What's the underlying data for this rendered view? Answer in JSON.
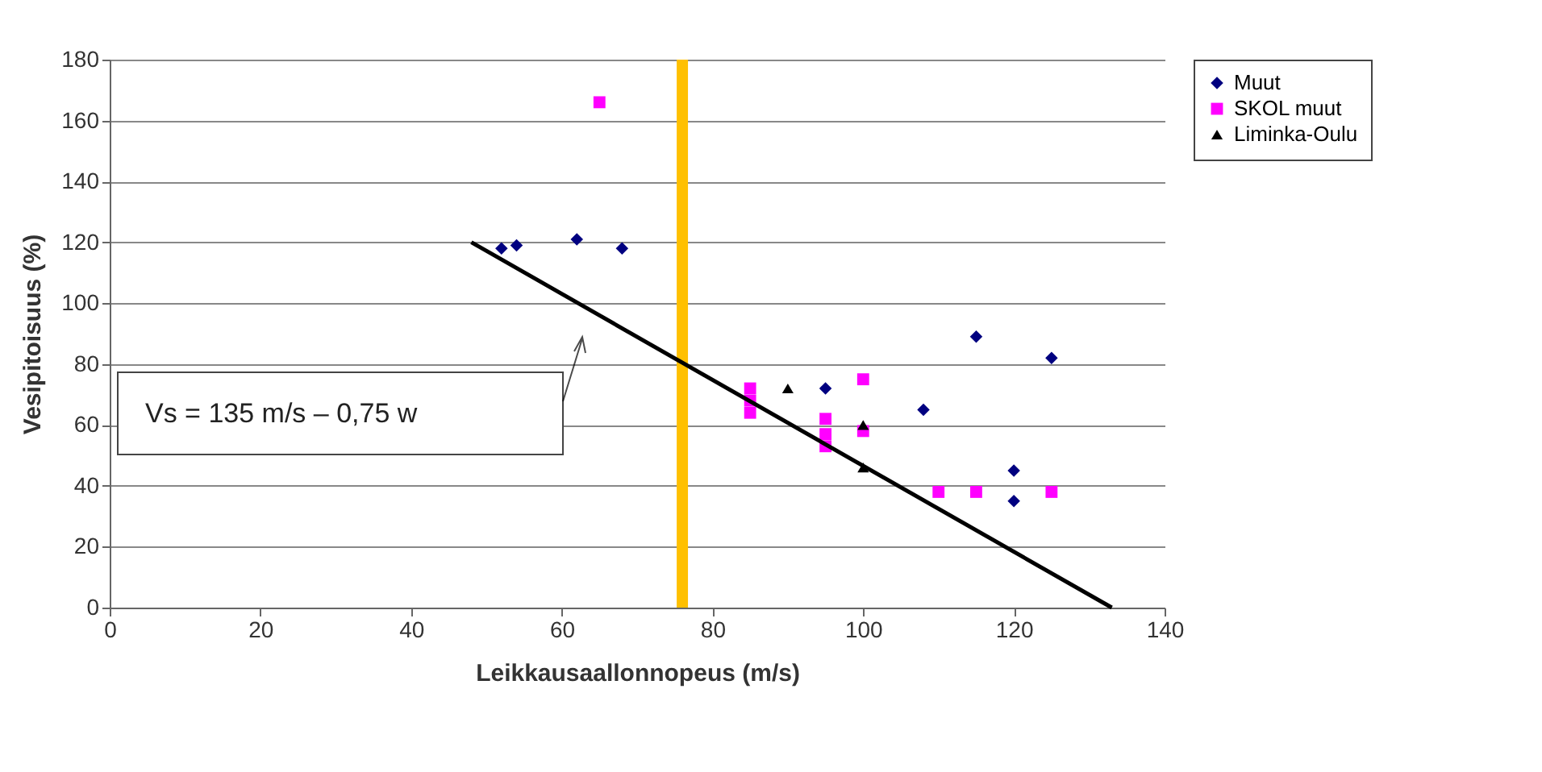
{
  "chart_data": {
    "type": "scatter",
    "xlabel": "Leikkausaallonnopeus (m/s)",
    "ylabel": "Vesipitoisuus (%)",
    "xlim": [
      0,
      140
    ],
    "xticks": [
      0,
      20,
      40,
      60,
      80,
      100,
      120,
      140
    ],
    "ylim": [
      0,
      180
    ],
    "yticks": [
      0,
      20,
      40,
      60,
      80,
      100,
      120,
      140,
      160,
      180
    ],
    "grid": "y",
    "legend": "right",
    "series": [
      {
        "name": "Muut",
        "color": "#000080",
        "marker": "diamond",
        "x": [
          52,
          54,
          62,
          68,
          95,
          108,
          115,
          120,
          120,
          125
        ],
        "values": [
          118,
          119,
          121,
          118,
          72,
          65,
          89,
          45,
          35,
          82
        ]
      },
      {
        "name": "SKOL muut",
        "color": "#ff00ff",
        "marker": "square",
        "x": [
          65,
          85,
          85,
          85,
          95,
          95,
          95,
          100,
          100,
          110,
          115,
          125
        ],
        "values": [
          166,
          72,
          68,
          64,
          62,
          57,
          53,
          75,
          58,
          38,
          38,
          38
        ]
      },
      {
        "name": "Liminka-Oulu",
        "color": "#000000",
        "marker": "triangle",
        "x": [
          90,
          100,
          100
        ],
        "values": [
          72,
          60,
          46
        ]
      },
      {
        "type": "line",
        "color": "#000000",
        "x": [
          48,
          133
        ],
        "values": [
          120,
          0
        ]
      }
    ],
    "ref_lines": [
      {
        "axis": "x",
        "value": 76,
        "color": "#ffc000"
      }
    ],
    "annotations": [
      "Vs = 135 m/s – 0,75 w"
    ]
  }
}
